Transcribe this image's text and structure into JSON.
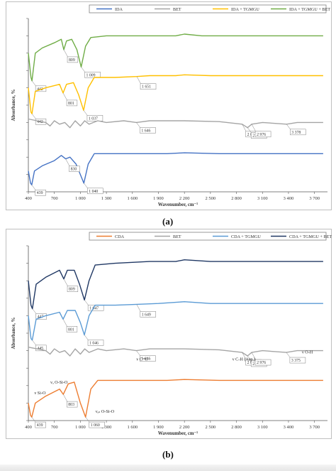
{
  "panels": [
    {
      "label": "(a)",
      "xlabel": "Wavenumber, cm⁻¹",
      "ylabel": "Absorbance, %",
      "legend": [
        {
          "name": "IDA",
          "color": "#4472c4"
        },
        {
          "name": "BET",
          "color": "#a5a5a5"
        },
        {
          "name": "IDA + TGMGU",
          "color": "#ffc000"
        },
        {
          "name": "IDA + TGMGU + BET",
          "color": "#70ad47"
        }
      ]
    },
    {
      "label": "(b)",
      "xlabel": "Wavenumber, cm⁻¹",
      "ylabel": "Absorbance, %",
      "legend": [
        {
          "name": "CDA",
          "color": "#ed7d31"
        },
        {
          "name": "BET",
          "color": "#a5a5a5"
        },
        {
          "name": "CDA + TGMGU",
          "color": "#5b9bd5"
        },
        {
          "name": "CDA + TGMGU + BET",
          "color": "#203864"
        }
      ]
    }
  ],
  "chart_data": [
    {
      "type": "line",
      "title": "",
      "xlabel": "Wavenumber, cm⁻¹",
      "ylabel": "Absorbance, %",
      "xlim": [
        400,
        3850
      ],
      "xticks": [
        "400",
        "700",
        "1 000",
        "1 300",
        "1 600",
        "1 900",
        "2 200",
        "2 500",
        "2 800",
        "3 100",
        "3 400",
        "3 700"
      ],
      "legend_position": "top",
      "grid": false,
      "series": [
        {
          "name": "IDA + TGMGU + BET",
          "color": "#70ad47",
          "base": 0.88,
          "points": [
            [
              400,
              0.8
            ],
            [
              430,
              0.66
            ],
            [
              442,
              0.64
            ],
            [
              480,
              0.8
            ],
            [
              560,
              0.83
            ],
            [
              700,
              0.86
            ],
            [
              780,
              0.88
            ],
            [
              809,
              0.82
            ],
            [
              840,
              0.87
            ],
            [
              900,
              0.88
            ],
            [
              960,
              0.82
            ],
            [
              1009,
              0.72
            ],
            [
              1060,
              0.84
            ],
            [
              1120,
              0.89
            ],
            [
              1300,
              0.9
            ],
            [
              1600,
              0.9
            ],
            [
              1900,
              0.9
            ],
            [
              2100,
              0.9
            ],
            [
              2200,
              0.91
            ],
            [
              2400,
              0.9
            ],
            [
              2800,
              0.9
            ],
            [
              3200,
              0.9
            ],
            [
              3800,
              0.9
            ]
          ],
          "annotations": [
            {
              "x": 442,
              "label": "442"
            },
            {
              "x": 809,
              "label": "809"
            },
            {
              "x": 1009,
              "label": "1 009"
            }
          ]
        },
        {
          "name": "IDA + TGMGU",
          "color": "#ffc000",
          "base": 0.64,
          "points": [
            [
              400,
              0.6
            ],
            [
              430,
              0.46
            ],
            [
              442,
              0.45
            ],
            [
              480,
              0.58
            ],
            [
              600,
              0.6
            ],
            [
              760,
              0.62
            ],
            [
              801,
              0.57
            ],
            [
              840,
              0.62
            ],
            [
              920,
              0.63
            ],
            [
              980,
              0.56
            ],
            [
              1037,
              0.47
            ],
            [
              1090,
              0.6
            ],
            [
              1160,
              0.66
            ],
            [
              1400,
              0.66
            ],
            [
              1651,
              0.665
            ],
            [
              1800,
              0.67
            ],
            [
              2100,
              0.67
            ],
            [
              2200,
              0.675
            ],
            [
              2500,
              0.67
            ],
            [
              2900,
              0.67
            ],
            [
              3300,
              0.67
            ],
            [
              3800,
              0.67
            ]
          ],
          "annotations": [
            {
              "x": 442,
              "label": "442"
            },
            {
              "x": 801,
              "label": "801"
            },
            {
              "x": 1037,
              "label": "1 037"
            },
            {
              "x": 1651,
              "label": "1 651"
            }
          ]
        },
        {
          "name": "BET",
          "color": "#a5a5a5",
          "base": 0.4,
          "points": [
            [
              400,
              0.42
            ],
            [
              500,
              0.41
            ],
            [
              600,
              0.4
            ],
            [
              650,
              0.38
            ],
            [
              700,
              0.41
            ],
            [
              760,
              0.39
            ],
            [
              820,
              0.4
            ],
            [
              880,
              0.37
            ],
            [
              940,
              0.41
            ],
            [
              1000,
              0.38
            ],
            [
              1050,
              0.41
            ],
            [
              1100,
              0.39
            ],
            [
              1200,
              0.41
            ],
            [
              1300,
              0.4
            ],
            [
              1500,
              0.41
            ],
            [
              1646,
              0.4
            ],
            [
              1800,
              0.41
            ],
            [
              2200,
              0.41
            ],
            [
              2600,
              0.405
            ],
            [
              2866,
              0.39
            ],
            [
              2928,
              0.37
            ],
            [
              2976,
              0.39
            ],
            [
              3100,
              0.4
            ],
            [
              3378,
              0.39
            ],
            [
              3500,
              0.4
            ],
            [
              3800,
              0.4
            ]
          ],
          "annotations": [
            {
              "x": 1646,
              "label": "1 646"
            },
            {
              "x": 2866,
              "label": "2 866"
            },
            {
              "x": 2928,
              "label": "2 928"
            },
            {
              "x": 2976,
              "label": "2 976"
            },
            {
              "x": 3378,
              "label": "3 378"
            }
          ]
        },
        {
          "name": "IDA",
          "color": "#4472c4",
          "base": 0.18,
          "points": [
            [
              400,
              0.12
            ],
            [
              425,
              0.05
            ],
            [
              439,
              0.04
            ],
            [
              470,
              0.12
            ],
            [
              560,
              0.15
            ],
            [
              700,
              0.18
            ],
            [
              780,
              0.21
            ],
            [
              830,
              0.19
            ],
            [
              880,
              0.2
            ],
            [
              950,
              0.16
            ],
            [
              1040,
              0.05
            ],
            [
              1090,
              0.16
            ],
            [
              1160,
              0.22
            ],
            [
              1300,
              0.22
            ],
            [
              1600,
              0.22
            ],
            [
              2000,
              0.22
            ],
            [
              2200,
              0.225
            ],
            [
              2600,
              0.22
            ],
            [
              3200,
              0.22
            ],
            [
              3800,
              0.22
            ]
          ],
          "annotations": [
            {
              "x": 439,
              "label": "439"
            },
            {
              "x": 830,
              "label": "830"
            },
            {
              "x": 1040,
              "label": "1 040"
            }
          ]
        }
      ]
    },
    {
      "type": "line",
      "title": "",
      "xlabel": "Wavenumber, cm⁻¹",
      "ylabel": "Absorbance, %",
      "xlim": [
        400,
        3850
      ],
      "xticks": [
        "400",
        "700",
        "1 000",
        "1 300",
        "1 600",
        "1 900",
        "2 200",
        "2 500",
        "2 800",
        "3 100",
        "3 400",
        "3 700"
      ],
      "legend_position": "top",
      "grid": false,
      "series": [
        {
          "name": "CDA + TGMGU + BET",
          "color": "#203864",
          "base": 0.88,
          "points": [
            [
              400,
              0.8
            ],
            [
              430,
              0.66
            ],
            [
              447,
              0.64
            ],
            [
              490,
              0.78
            ],
            [
              600,
              0.82
            ],
            [
              760,
              0.86
            ],
            [
              809,
              0.81
            ],
            [
              850,
              0.86
            ],
            [
              930,
              0.86
            ],
            [
              990,
              0.78
            ],
            [
              1047,
              0.69
            ],
            [
              1100,
              0.8
            ],
            [
              1170,
              0.89
            ],
            [
              1400,
              0.9
            ],
            [
              1800,
              0.91
            ],
            [
              2100,
              0.91
            ],
            [
              2200,
              0.92
            ],
            [
              2500,
              0.91
            ],
            [
              3000,
              0.91
            ],
            [
              3800,
              0.91
            ]
          ],
          "annotations": [
            {
              "x": 447,
              "label": "447"
            },
            {
              "x": 809,
              "label": "809"
            },
            {
              "x": 1047,
              "label": "1 047"
            }
          ]
        },
        {
          "name": "CDA + TGMGU",
          "color": "#5b9bd5",
          "base": 0.64,
          "points": [
            [
              400,
              0.6
            ],
            [
              430,
              0.47
            ],
            [
              445,
              0.46
            ],
            [
              490,
              0.58
            ],
            [
              600,
              0.6
            ],
            [
              760,
              0.62
            ],
            [
              801,
              0.58
            ],
            [
              850,
              0.63
            ],
            [
              940,
              0.63
            ],
            [
              1000,
              0.56
            ],
            [
              1046,
              0.49
            ],
            [
              1100,
              0.6
            ],
            [
              1170,
              0.66
            ],
            [
              1400,
              0.66
            ],
            [
              1649,
              0.665
            ],
            [
              1900,
              0.67
            ],
            [
              2200,
              0.68
            ],
            [
              2500,
              0.67
            ],
            [
              3000,
              0.67
            ],
            [
              3800,
              0.67
            ]
          ],
          "annotations": [
            {
              "x": 445,
              "label": "445"
            },
            {
              "x": 801,
              "label": "801"
            },
            {
              "x": 1046,
              "label": "1 046"
            },
            {
              "x": 1649,
              "label": "1 649"
            }
          ]
        },
        {
          "name": "BET",
          "color": "#a5a5a5",
          "base": 0.4,
          "points": [
            [
              400,
              0.42
            ],
            [
              500,
              0.41
            ],
            [
              600,
              0.4
            ],
            [
              650,
              0.38
            ],
            [
              700,
              0.41
            ],
            [
              760,
              0.39
            ],
            [
              820,
              0.4
            ],
            [
              880,
              0.37
            ],
            [
              940,
              0.41
            ],
            [
              1000,
              0.38
            ],
            [
              1050,
              0.41
            ],
            [
              1100,
              0.39
            ],
            [
              1200,
              0.41
            ],
            [
              1300,
              0.4
            ],
            [
              1500,
              0.41
            ],
            [
              1646,
              0.4
            ],
            [
              1800,
              0.41
            ],
            [
              2200,
              0.41
            ],
            [
              2600,
              0.405
            ],
            [
              2866,
              0.39
            ],
            [
              2928,
              0.37
            ],
            [
              2976,
              0.39
            ],
            [
              3100,
              0.4
            ],
            [
              3375,
              0.39
            ],
            [
              3500,
              0.4
            ],
            [
              3800,
              0.4
            ]
          ],
          "annotations": [
            {
              "x": 1646,
              "label": "1 646"
            },
            {
              "x": 2866,
              "label": "2 866"
            },
            {
              "x": 2928,
              "label": "2 928"
            },
            {
              "x": 2976,
              "label": "2 976"
            },
            {
              "x": 3375,
              "label": "3 375"
            }
          ]
        },
        {
          "name": "CDA",
          "color": "#ed7d31",
          "base": 0.16,
          "points": [
            [
              400,
              0.1
            ],
            [
              425,
              0.03
            ],
            [
              439,
              0.02
            ],
            [
              480,
              0.1
            ],
            [
              600,
              0.14
            ],
            [
              760,
              0.18
            ],
            [
              803,
              0.15
            ],
            [
              860,
              0.21
            ],
            [
              930,
              0.22
            ],
            [
              1000,
              0.1
            ],
            [
              1060,
              0.02
            ],
            [
              1120,
              0.18
            ],
            [
              1200,
              0.23
            ],
            [
              1500,
              0.23
            ],
            [
              2000,
              0.23
            ],
            [
              2200,
              0.235
            ],
            [
              2600,
              0.23
            ],
            [
              3200,
              0.23
            ],
            [
              3800,
              0.23
            ]
          ],
          "annotations": [
            {
              "x": 439,
              "label": "439"
            },
            {
              "x": 803,
              "label": "803"
            },
            {
              "x": 1060,
              "label": "1 060"
            }
          ]
        }
      ],
      "text_labels": [
        {
          "x": 1646,
          "label": "ν C=C"
        },
        {
          "x": 2900,
          "label": "ν C-H (Asp.)"
        },
        {
          "x": 3375,
          "label": "ν O-H"
        },
        {
          "x": 720,
          "label": "νₐ O-Si-O"
        },
        {
          "x": 420,
          "label": "ν Si-O"
        },
        {
          "x": 1060,
          "label": "νₐₛ O-Si-O"
        }
      ]
    }
  ]
}
